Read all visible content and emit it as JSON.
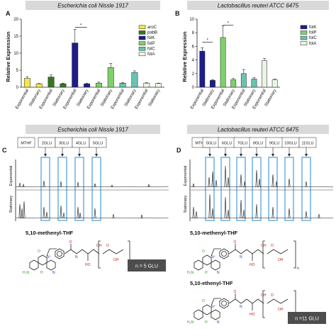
{
  "colors": {
    "header_bg": "#d9d9d9",
    "highlight": "#6ab0e6",
    "n_box": "#4d4d4d",
    "aroC": "#f2e84a",
    "pabB": "#35771f",
    "folK": "#1f1d8a",
    "folP": "#7fd06b",
    "folC": "#68c4b0",
    "folA": "#eaf4e2"
  },
  "header_left": "Escherichia coli Nissle 1917",
  "header_right": "Lactobacillus reuteri ATCC 6475",
  "panel_labels": [
    "A",
    "B",
    "C",
    "D"
  ],
  "chart_data": [
    {
      "type": "bar",
      "ylabel": "Relative Expression",
      "ylim": [
        0,
        20
      ],
      "yticks": [
        0,
        5,
        10,
        15,
        20
      ],
      "categories": [
        "Exponential",
        "Stationary",
        "Exponential",
        "Stationary",
        "Exponential",
        "Stationary",
        "Exponential",
        "Stationary",
        "Exponential",
        "Stationary",
        "Exponential",
        "Stationary"
      ],
      "groups": [
        "aroC",
        "pabB",
        "folK",
        "folP",
        "folC",
        "folA"
      ],
      "values": [
        2.6,
        1.0,
        3.0,
        1.0,
        13.0,
        1.0,
        1.2,
        5.8,
        1.2,
        4.3,
        1.2,
        1.1
      ],
      "errors": [
        0.5,
        0.1,
        0.6,
        0.2,
        4.0,
        0.2,
        0.3,
        1.2,
        0.2,
        0.5,
        0.2,
        0.1
      ],
      "significance": [
        {
          "from": 4,
          "to": 5,
          "label": "*",
          "y": 17.6
        }
      ],
      "legend": [
        "aroC",
        "pabB",
        "folK",
        "folP",
        "folC",
        "folA"
      ]
    },
    {
      "type": "bar",
      "ylabel": "Relative Expression",
      "ylim": [
        0,
        10
      ],
      "yticks": [
        0,
        2,
        4,
        6,
        8,
        10
      ],
      "categories": [
        "Exponential",
        "Stationary",
        "Exponential",
        "Stationary",
        "Exponential",
        "Stationary",
        "Exponential",
        "Stationary"
      ],
      "groups": [
        "folK",
        "folP",
        "folC",
        "folA"
      ],
      "values": [
        5.3,
        1.0,
        7.3,
        1.1,
        2.0,
        1.2,
        3.9,
        1.1
      ],
      "errors": [
        0.5,
        0.1,
        1.7,
        0.2,
        0.6,
        0.2,
        0.3,
        0.1
      ],
      "significance": [
        {
          "from": 0,
          "to": 1,
          "label": "*",
          "y": 6.6
        },
        {
          "from": 2,
          "to": 3,
          "label": "*",
          "y": 9.1
        }
      ],
      "legend": [
        "folK",
        "folP",
        "folC",
        "folA"
      ]
    }
  ],
  "panel_c": {
    "labels": [
      "MTHF",
      "2GLU",
      "3GLU",
      "4GLU",
      "5GLU"
    ],
    "row_labels": [
      "Exponential",
      "Stationary"
    ],
    "compound": "5,10-methenyl-THF",
    "n_label": "n = 5 GLU"
  },
  "panel_d": {
    "labels": [
      "MTHF",
      "5GLU",
      "6GLU",
      "7GLU",
      "8GLU",
      "9GLU",
      "10GLU",
      "11GLU"
    ],
    "row_labels": [
      "Exponential",
      "Stationary"
    ],
    "compound_1": "5,10-methenyl-THF",
    "compound_2": "5,10-ethenyl-THF",
    "n_label": "n =11 GLU"
  },
  "chem": {
    "h2n": "H₂N",
    "n": "N",
    "nplus": "N⁺",
    "o": "O",
    "oh": "OH",
    "ho": "HO",
    "h": "H",
    "n_sub": "n"
  }
}
